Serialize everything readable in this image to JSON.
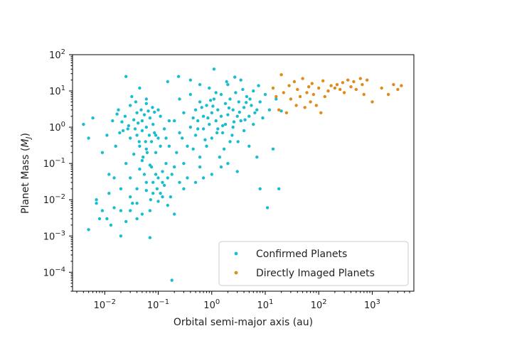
{
  "chart_data": {
    "type": "scatter",
    "title": "",
    "xlabel": "Orbital semi-major axis (au)",
    "ylabel_prefix": "Planet Mass (",
    "ylabel_symbol": "M",
    "ylabel_sub": "J",
    "ylabel_suffix": ")",
    "x_scale": "log",
    "y_scale": "log",
    "xlim": [
      0.0025,
      6000
    ],
    "ylim": [
      3e-05,
      100
    ],
    "x_ticks": [
      {
        "value": 0.01,
        "base": "10",
        "exp": "−2"
      },
      {
        "value": 0.1,
        "base": "10",
        "exp": "−1"
      },
      {
        "value": 1,
        "base": "10",
        "exp": "0"
      },
      {
        "value": 10,
        "base": "10",
        "exp": "1"
      },
      {
        "value": 100,
        "base": "10",
        "exp": "2"
      },
      {
        "value": 1000,
        "base": "10",
        "exp": "3"
      }
    ],
    "y_ticks": [
      {
        "value": 0.0001,
        "base": "10",
        "exp": "−4"
      },
      {
        "value": 0.001,
        "base": "10",
        "exp": "−3"
      },
      {
        "value": 0.01,
        "base": "10",
        "exp": "−2"
      },
      {
        "value": 0.1,
        "base": "10",
        "exp": "−1"
      },
      {
        "value": 1,
        "base": "10",
        "exp": "0"
      },
      {
        "value": 10,
        "base": "10",
        "exp": "1"
      },
      {
        "value": 100,
        "base": "10",
        "exp": "2"
      }
    ],
    "grid": false,
    "legend_position": "bottom-right",
    "series": [
      {
        "name": "Confirmed Planets",
        "color": "#17becf",
        "points": [
          [
            0.004,
            1.2
          ],
          [
            0.005,
            0.5
          ],
          [
            0.006,
            1.8
          ],
          [
            0.007,
            0.01
          ],
          [
            0.005,
            0.0015
          ],
          [
            0.008,
            0.003
          ],
          [
            0.009,
            0.2
          ],
          [
            0.012,
            0.05
          ],
          [
            0.015,
            0.006
          ],
          [
            0.011,
            0.6
          ],
          [
            0.013,
            0.002
          ],
          [
            0.014,
            1.5
          ],
          [
            0.016,
            0.3
          ],
          [
            0.018,
            3
          ],
          [
            0.02,
            0.02
          ],
          [
            0.022,
            0.8
          ],
          [
            0.024,
            2
          ],
          [
            0.025,
            0.1
          ],
          [
            0.025,
            25
          ],
          [
            0.03,
            0.5
          ],
          [
            0.03,
            4
          ],
          [
            0.028,
            1.1
          ],
          [
            0.03,
            0.04
          ],
          [
            0.035,
            1.6
          ],
          [
            0.033,
            0.008
          ],
          [
            0.037,
            0.9
          ],
          [
            0.04,
            2.5
          ],
          [
            0.04,
            0.6
          ],
          [
            0.042,
            1.3
          ],
          [
            0.045,
            0.3
          ],
          [
            0.045,
            12
          ],
          [
            0.048,
            3
          ],
          [
            0.05,
            1.5
          ],
          [
            0.05,
            0.8
          ],
          [
            0.052,
            0.15
          ],
          [
            0.055,
            2.2
          ],
          [
            0.055,
            0.05
          ],
          [
            0.058,
            0.4
          ],
          [
            0.06,
            1
          ],
          [
            0.06,
            6
          ],
          [
            0.062,
            0.2
          ],
          [
            0.065,
            2.8
          ],
          [
            0.068,
            0.6
          ],
          [
            0.07,
            1.8
          ],
          [
            0.07,
            0.09
          ],
          [
            0.072,
            0.01
          ],
          [
            0.075,
            0.4
          ],
          [
            0.078,
            3.5
          ],
          [
            0.08,
            0.03
          ],
          [
            0.08,
            1.2
          ],
          [
            0.085,
            0.7
          ],
          [
            0.09,
            0.2
          ],
          [
            0.09,
            0.05
          ],
          [
            0.095,
            0.02
          ],
          [
            0.1,
            0.04
          ],
          [
            0.1,
            0.5
          ],
          [
            0.11,
            0.015
          ],
          [
            0.11,
            2
          ],
          [
            0.12,
            0.06
          ],
          [
            0.12,
            0.03
          ],
          [
            0.13,
            0.025
          ],
          [
            0.14,
            0.1
          ],
          [
            0.15,
            0.04
          ],
          [
            0.15,
            18
          ],
          [
            0.16,
            0.3
          ],
          [
            0.17,
            0.012
          ],
          [
            0.18,
            0.05
          ],
          [
            0.2,
            1.5
          ],
          [
            0.2,
            0.08
          ],
          [
            0.22,
            0.2
          ],
          [
            0.25,
            0.03
          ],
          [
            0.25,
            6
          ],
          [
            0.28,
            0.5
          ],
          [
            0.3,
            0.1
          ],
          [
            0.3,
            2.5
          ],
          [
            0.35,
            0.04
          ],
          [
            0.4,
            1
          ],
          [
            0.4,
            8
          ],
          [
            0.45,
            0.25
          ],
          [
            0.5,
            3
          ],
          [
            0.5,
            0.6
          ],
          [
            0.55,
            1.5
          ],
          [
            0.6,
            5
          ],
          [
            0.6,
            0.08
          ],
          [
            0.7,
            2
          ],
          [
            0.7,
            0.9
          ],
          [
            0.8,
            4
          ],
          [
            0.8,
            0.3
          ],
          [
            0.9,
            1.2
          ],
          [
            0.9,
            12
          ],
          [
            1,
            2.5
          ],
          [
            1,
            0.5
          ],
          [
            1.1,
            6
          ],
          [
            1.1,
            40
          ],
          [
            1.2,
            1.5
          ],
          [
            1.3,
            3
          ],
          [
            1.4,
            0.15
          ],
          [
            1.5,
            8
          ],
          [
            1.5,
            2
          ],
          [
            1.6,
            0.7
          ],
          [
            1.8,
            4.5
          ],
          [
            1.8,
            1.2
          ],
          [
            2,
            15
          ],
          [
            2,
            2.2
          ],
          [
            2.2,
            0.4
          ],
          [
            2.2,
            6
          ],
          [
            2.5,
            3
          ],
          [
            2.5,
            1
          ],
          [
            2.8,
            9
          ],
          [
            3,
            2
          ],
          [
            3,
            0.06
          ],
          [
            3.2,
            5
          ],
          [
            3.5,
            1.5
          ],
          [
            3.5,
            20
          ],
          [
            4,
            3.5
          ],
          [
            4,
            0.8
          ],
          [
            4.5,
            7
          ],
          [
            5,
            2
          ],
          [
            5,
            0.3
          ],
          [
            5.5,
            4
          ],
          [
            6,
            10
          ],
          [
            6,
            1.2
          ],
          [
            7,
            3
          ],
          [
            7,
            0.15
          ],
          [
            8,
            5
          ],
          [
            8,
            0.02
          ],
          [
            9,
            1.8
          ],
          [
            10,
            8
          ],
          [
            11,
            0.006
          ],
          [
            12,
            3
          ],
          [
            14,
            0.25
          ],
          [
            16,
            6
          ],
          [
            18,
            0.02
          ],
          [
            20,
            2.8
          ],
          [
            0.02,
            0.001
          ],
          [
            0.07,
            0.0009
          ],
          [
            0.18,
            6e-05
          ],
          [
            0.03,
            0.012
          ],
          [
            0.06,
            0.018
          ],
          [
            0.04,
            0.008
          ],
          [
            0.015,
            0.04
          ],
          [
            0.012,
            0.015
          ],
          [
            0.2,
            0.004
          ],
          [
            0.06,
            0.25
          ],
          [
            0.05,
            0.12
          ],
          [
            0.035,
            0.18
          ],
          [
            0.045,
            0.07
          ],
          [
            0.075,
            0.08
          ],
          [
            0.09,
            0.6
          ],
          [
            0.13,
            0.9
          ],
          [
            0.16,
            1.5
          ],
          [
            0.1,
            3
          ],
          [
            0.032,
            7
          ],
          [
            0.038,
            5
          ],
          [
            0.044,
            0.4
          ],
          [
            0.027,
            0.9
          ],
          [
            0.021,
            1.4
          ],
          [
            0.019,
            0.7
          ],
          [
            0.017,
            2.3
          ],
          [
            0.06,
            4.5
          ],
          [
            0.085,
            2.6
          ],
          [
            0.11,
            0.3
          ],
          [
            0.14,
            0.5
          ],
          [
            0.08,
            0.015
          ],
          [
            0.1,
            0.009
          ],
          [
            0.07,
            0.005
          ],
          [
            0.05,
            0.004
          ],
          [
            0.04,
            0.003
          ],
          [
            0.03,
            0.005
          ],
          [
            0.025,
            0.0025
          ],
          [
            0.3,
            0.02
          ],
          [
            0.5,
            0.03
          ],
          [
            0.7,
            0.04
          ],
          [
            1,
            0.05
          ],
          [
            1.5,
            0.08
          ],
          [
            2,
            0.1
          ],
          [
            0.35,
            0.3
          ],
          [
            0.25,
            0.7
          ],
          [
            0.6,
            0.15
          ],
          [
            0.45,
            1.8
          ],
          [
            0.65,
            3.5
          ],
          [
            0.75,
            0.45
          ],
          [
            1.3,
            0.9
          ],
          [
            1.7,
            0.25
          ],
          [
            2.4,
            0.6
          ],
          [
            3.1,
            0.4
          ],
          [
            4.2,
            1.6
          ],
          [
            5.2,
            6
          ],
          [
            6.4,
            2.5
          ],
          [
            7.5,
            14
          ],
          [
            3.8,
            11
          ],
          [
            2.7,
            24
          ],
          [
            1.9,
            18
          ],
          [
            1.2,
            9
          ],
          [
            0.95,
            5.5
          ],
          [
            0.55,
            0.9
          ],
          [
            0.85,
            1.8
          ],
          [
            1.05,
            3.8
          ],
          [
            1.25,
            0.7
          ],
          [
            1.6,
            1.1
          ],
          [
            2.1,
            3.4
          ],
          [
            2.6,
            1.4
          ],
          [
            3.3,
            2.6
          ],
          [
            4.4,
            4.8
          ],
          [
            0.24,
            25
          ],
          [
            0.4,
            20
          ],
          [
            0.6,
            15
          ],
          [
            0.011,
            0.003
          ],
          [
            0.009,
            0.005
          ],
          [
            0.007,
            0.008
          ],
          [
            0.02,
            0.005
          ],
          [
            0.04,
            0.02
          ],
          [
            0.06,
            0.03
          ],
          [
            0.12,
            0.012
          ],
          [
            0.15,
            0.007
          ]
        ]
      },
      {
        "name": "Directly Imaged Planets",
        "color": "#e08a1a",
        "points": [
          [
            14,
            12
          ],
          [
            16,
            7
          ],
          [
            18,
            3
          ],
          [
            20,
            28
          ],
          [
            22,
            9
          ],
          [
            25,
            2.5
          ],
          [
            28,
            14
          ],
          [
            30,
            6
          ],
          [
            35,
            18
          ],
          [
            38,
            4
          ],
          [
            40,
            11
          ],
          [
            45,
            7
          ],
          [
            50,
            22
          ],
          [
            55,
            3.5
          ],
          [
            60,
            9
          ],
          [
            65,
            13
          ],
          [
            70,
            5
          ],
          [
            75,
            16
          ],
          [
            80,
            8
          ],
          [
            90,
            4
          ],
          [
            100,
            12
          ],
          [
            110,
            2.5
          ],
          [
            120,
            19
          ],
          [
            130,
            7
          ],
          [
            150,
            10
          ],
          [
            170,
            14
          ],
          [
            200,
            12
          ],
          [
            220,
            15
          ],
          [
            250,
            11
          ],
          [
            280,
            17
          ],
          [
            300,
            9
          ],
          [
            350,
            20
          ],
          [
            400,
            13
          ],
          [
            450,
            18
          ],
          [
            500,
            11
          ],
          [
            600,
            22
          ],
          [
            650,
            15
          ],
          [
            700,
            8
          ],
          [
            800,
            20
          ],
          [
            1000,
            5
          ],
          [
            1500,
            12
          ],
          [
            2000,
            8
          ],
          [
            2500,
            15
          ],
          [
            3000,
            11
          ],
          [
            3500,
            14
          ]
        ]
      }
    ]
  }
}
